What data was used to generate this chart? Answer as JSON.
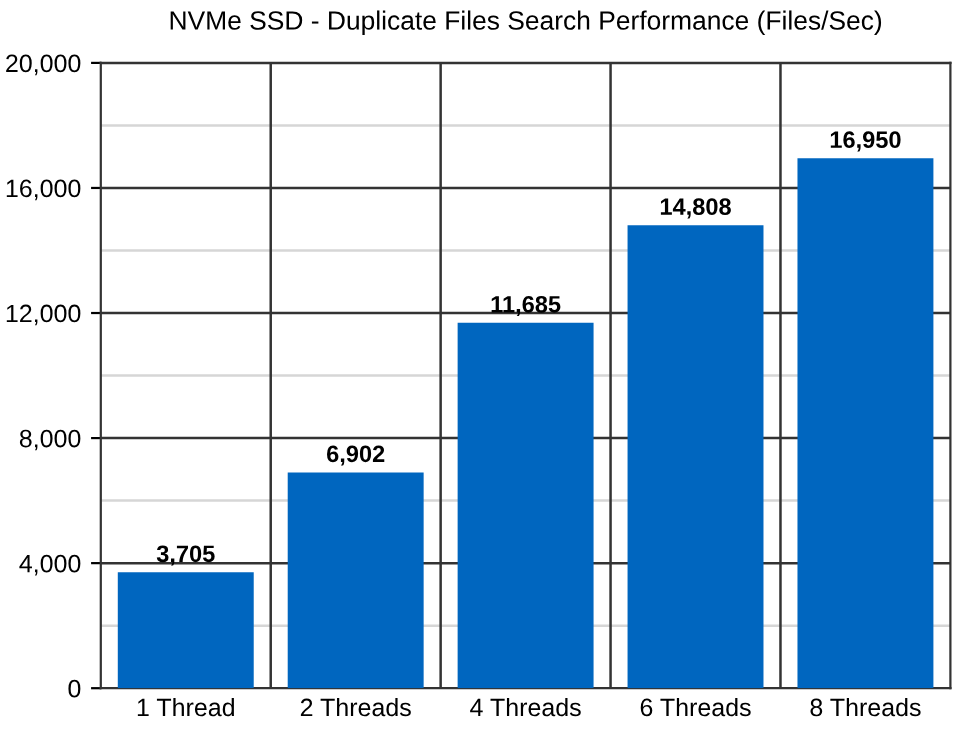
{
  "chart_data": {
    "type": "bar",
    "title": "NVMe SSD - Duplicate Files Search Performance (Files/Sec)",
    "categories": [
      "1 Thread",
      "2 Threads",
      "4 Threads",
      "6 Threads",
      "8 Threads"
    ],
    "values": [
      3705,
      6902,
      11685,
      14808,
      16950
    ],
    "color": "#0066bf",
    "ylim": [
      0,
      20000
    ],
    "yticks": [
      0,
      {
        "value": 4000,
        "label": "4,000"
      },
      {
        "value": 8000,
        "label": "8,000"
      },
      {
        "value": 12000,
        "label": "12,000"
      },
      {
        "value": 16000,
        "label": "16,000"
      },
      {
        "value": 20000,
        "label": "20,000"
      }
    ],
    "grid": true,
    "value_labels": [
      "3,705",
      "6,902",
      "11,685",
      "14,808",
      "16,950"
    ]
  }
}
